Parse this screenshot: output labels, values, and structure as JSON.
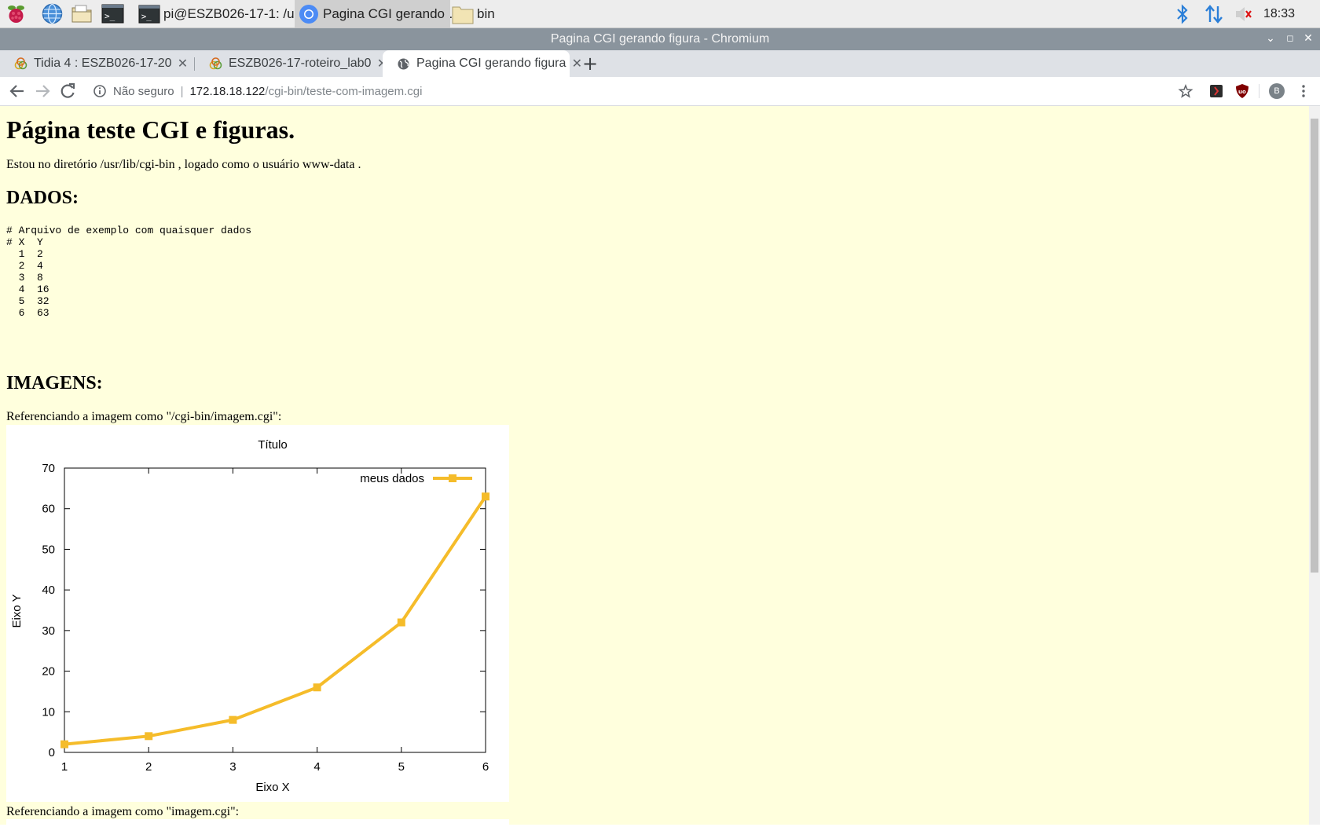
{
  "taskbar": {
    "tasks": [
      {
        "label": "pi@ESZB026-17-1: /u…",
        "icon": "terminal-icon"
      },
      {
        "label": "Pagina CGI gerando …",
        "icon": "chromium-icon"
      },
      {
        "label": "bin",
        "icon": "folder-icon"
      }
    ],
    "clock": "18:33"
  },
  "window": {
    "title": "Pagina CGI gerando figura - Chromium"
  },
  "tabs": [
    {
      "label": "Tidia 4 : ESZB026-17-20",
      "icon": "tidia-icon"
    },
    {
      "label": "ESZB026-17-roteiro_lab0",
      "icon": "tidia-icon"
    },
    {
      "label": "Pagina CGI gerando figura",
      "icon": "globe-icon"
    }
  ],
  "omnibox": {
    "security": "Não seguro",
    "host": "172.18.18.122",
    "path": "/cgi-bin/teste-com-imagem.cgi"
  },
  "profile": {
    "initial": "B"
  },
  "page": {
    "heading": "Página teste CGI e figuras.",
    "intro": "Estou no diretório /usr/lib/cgi-bin , logado como o usuário www-data .",
    "dados_heading": "DADOS:",
    "dados_text": "# Arquivo de exemplo com quaisquer dados\n# X  Y\n  1  2\n  2  4\n  3  8\n  4  16\n  5  32\n  6  63",
    "imagens_heading": "IMAGENS:",
    "ref1": "Referenciando a imagem como \"/cgi-bin/imagem.cgi\":",
    "ref2": "Referenciando a imagem como \"imagem.cgi\":"
  },
  "colors": {
    "page_bg": "#ffffdd",
    "series": "#f5bc2a"
  },
  "chart_data": {
    "type": "line",
    "title": "Título",
    "xlabel": "Eixo X",
    "ylabel": "Eixo Y",
    "xlim": [
      1,
      6
    ],
    "ylim": [
      0,
      70
    ],
    "xticks": [
      1,
      2,
      3,
      4,
      5,
      6
    ],
    "yticks": [
      0,
      10,
      20,
      30,
      40,
      50,
      60,
      70
    ],
    "grid": false,
    "legend_position": "top-right",
    "series": [
      {
        "name": "meus dados",
        "x": [
          1,
          2,
          3,
          4,
          5,
          6
        ],
        "y": [
          2,
          4,
          8,
          16,
          32,
          63
        ],
        "marker": "square"
      }
    ]
  }
}
